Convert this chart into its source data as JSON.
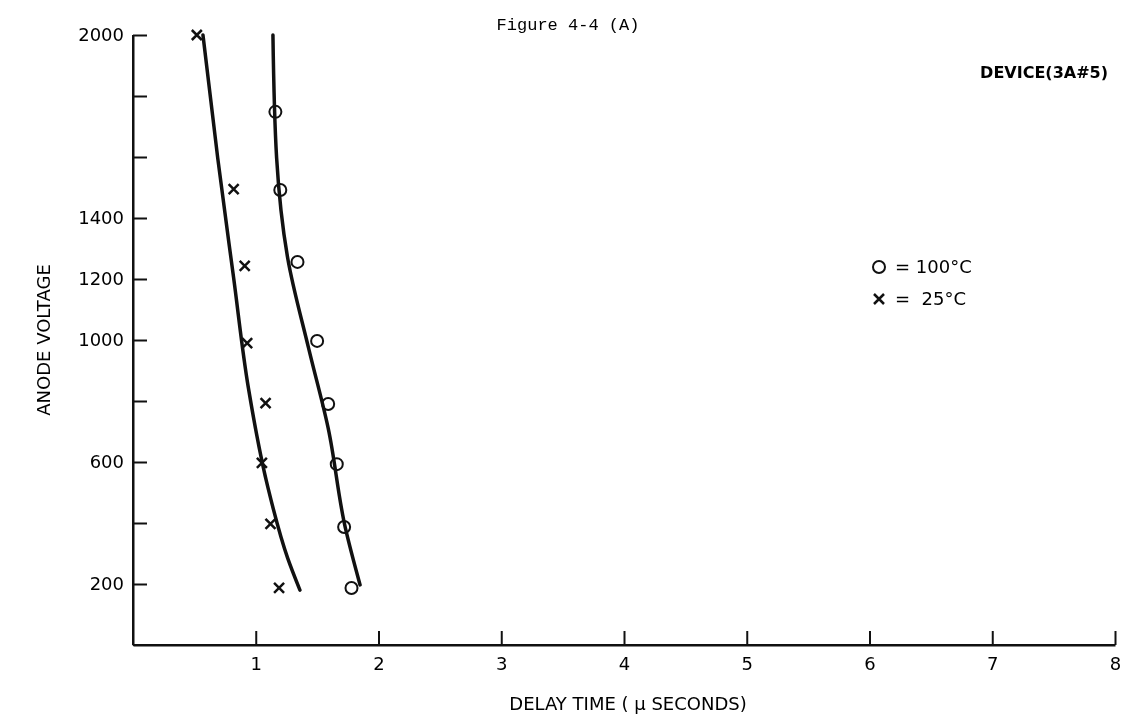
{
  "chart_data": {
    "type": "scatter",
    "title": "Figure 4-4 (A)",
    "xlabel": "DELAY TIME ( μ SECONDS)",
    "ylabel": "ANODE VOLTAGE",
    "annotations": [
      "DEVICE(3A#5)"
    ],
    "xlim": [
      0,
      8
    ],
    "xticks": [
      1,
      2,
      3,
      4,
      5,
      6,
      7,
      8
    ],
    "ylim": [
      0,
      2000
    ],
    "yticks": [
      200,
      {
        "value": 400,
        "label": null
      },
      600,
      {
        "value": 800,
        "label": null
      },
      1000,
      1200,
      1400,
      {
        "value": 1600,
        "label": null
      },
      {
        "value": 1800,
        "label": null
      },
      2000
    ],
    "grid": false,
    "legend": "right",
    "series": [
      {
        "name": "= 100°C",
        "color": "#111111",
        "marker": "circle",
        "x": [
          1.16,
          1.2,
          1.34,
          1.5,
          1.59,
          1.66,
          1.72,
          1.78
        ],
        "values": [
          1748,
          1492,
          1256,
          997,
          790,
          593,
          387,
          187
        ]
      },
      {
        "name": "=  25°C",
        "color": "#111111",
        "marker": "cross",
        "x": [
          0.52,
          0.82,
          0.91,
          0.93,
          1.08,
          1.05,
          1.12,
          1.19
        ],
        "values": [
          2000,
          1495,
          1243,
          990,
          793,
          597,
          397,
          187
        ]
      },
      {
        "type": "line",
        "color": "#111111",
        "x": [
          0.57,
          0.69,
          0.82,
          0.94,
          1.1,
          1.26,
          1.36
        ],
        "values": [
          2000,
          1597,
          1203,
          843,
          515,
          285,
          180
        ]
      },
      {
        "type": "line",
        "color": "#111111",
        "x": [
          1.14,
          1.17,
          1.26,
          1.43,
          1.59,
          1.73,
          1.85
        ],
        "values": [
          2000,
          1597,
          1269,
          974,
          711,
          384,
          197
        ]
      }
    ]
  }
}
